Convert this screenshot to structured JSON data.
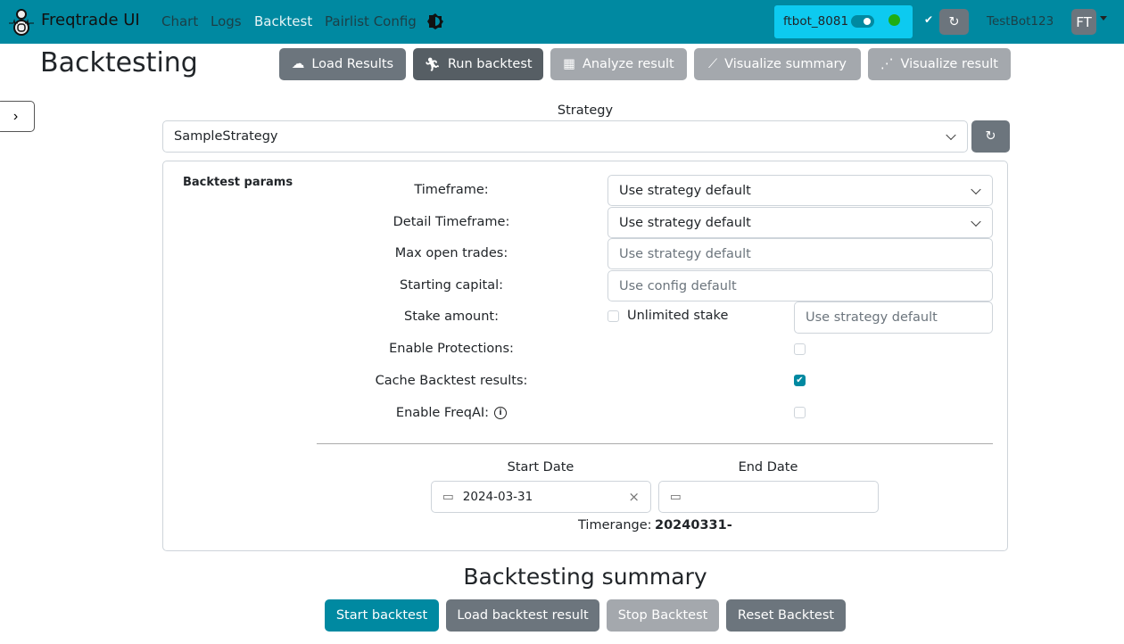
{
  "nav": {
    "brand": "Freqtrade UI",
    "links": [
      "Chart",
      "Logs",
      "Backtest",
      "Pairlist Config"
    ],
    "bot_name": "ftbot_8081",
    "bot_status_color": "#1fad13",
    "user": "TestBot123",
    "avatar": "FT"
  },
  "page": {
    "title": "Backtesting",
    "toolbar": [
      "Load Results",
      "Run backtest",
      "Analyze result",
      "Visualize summary",
      "Visualize result"
    ]
  },
  "strategy": {
    "label": "Strategy",
    "value": "SampleStrategy"
  },
  "params": {
    "title": "Backtest params",
    "timeframe_label": "Timeframe:",
    "timeframe_value": "Use strategy default",
    "detail_label": "Detail Timeframe:",
    "detail_value": "Use strategy default",
    "max_open_label": "Max open trades:",
    "max_open_placeholder": "Use strategy default",
    "capital_label": "Starting capital:",
    "capital_placeholder": "Use config default",
    "stake_label": "Stake amount:",
    "unlimited_label": "Unlimited stake",
    "unlimited_checked": false,
    "stake_placeholder": "Use strategy default",
    "protections_label": "Enable Protections:",
    "protections_checked": false,
    "cache_label": "Cache Backtest results:",
    "cache_checked": true,
    "freqai_label": "Enable FreqAI:",
    "freqai_checked": false,
    "start_label": "Start Date",
    "start_value": "2024-03-31",
    "end_label": "End Date",
    "end_value": "",
    "timerange_label": "Timerange:",
    "timerange_value": "20240331-"
  },
  "summary": {
    "title": "Backtesting summary",
    "buttons": [
      "Start backtest",
      "Load backtest result",
      "Stop Backtest",
      "Reset Backtest"
    ]
  },
  "colors": {
    "navbar": "#0089a1",
    "bot_box": "#0dcaf0",
    "primary": "#0089a1"
  }
}
